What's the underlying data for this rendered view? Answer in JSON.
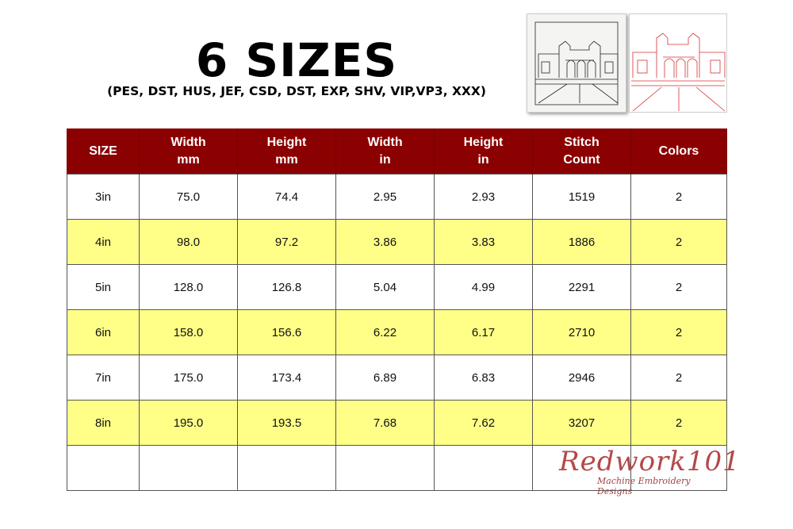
{
  "header": {
    "title": "6 SIZES",
    "formats": "(PES, DST, HUS, JEF, CSD, DST, EXP, SHV, VIP,VP3, XXX)"
  },
  "images": {
    "stitched_preview": "building-sketch-black",
    "redwork_preview": "building-sketch-red"
  },
  "table": {
    "columns": [
      [
        "SIZE"
      ],
      [
        "Width",
        "mm"
      ],
      [
        "Height",
        "mm"
      ],
      [
        "Width",
        "in"
      ],
      [
        "Height",
        "in"
      ],
      [
        "Stitch",
        "Count"
      ],
      [
        "Colors"
      ]
    ],
    "rows": [
      [
        "3in",
        "75.0",
        "74.4",
        "2.95",
        "2.93",
        "1519",
        "2"
      ],
      [
        "4in",
        "98.0",
        "97.2",
        "3.86",
        "3.83",
        "1886",
        "2"
      ],
      [
        "5in",
        "128.0",
        "126.8",
        "5.04",
        "4.99",
        "2291",
        "2"
      ],
      [
        "6in",
        "158.0",
        "156.6",
        "6.22",
        "6.17",
        "2710",
        "2"
      ],
      [
        "7in",
        "175.0",
        "173.4",
        "6.89",
        "6.83",
        "2946",
        "2"
      ],
      [
        "8in",
        "195.0",
        "193.5",
        "7.68",
        "7.62",
        "3207",
        "2"
      ],
      [
        "",
        "",
        "",
        "",
        "",
        "",
        ""
      ]
    ]
  },
  "logo": {
    "name": "Redwork101",
    "tagline": "Machine Embroidery Designs"
  },
  "colors": {
    "header_bg": "#8b0000",
    "alt_row_bg": "#ffff88",
    "logo": "#b54848"
  }
}
